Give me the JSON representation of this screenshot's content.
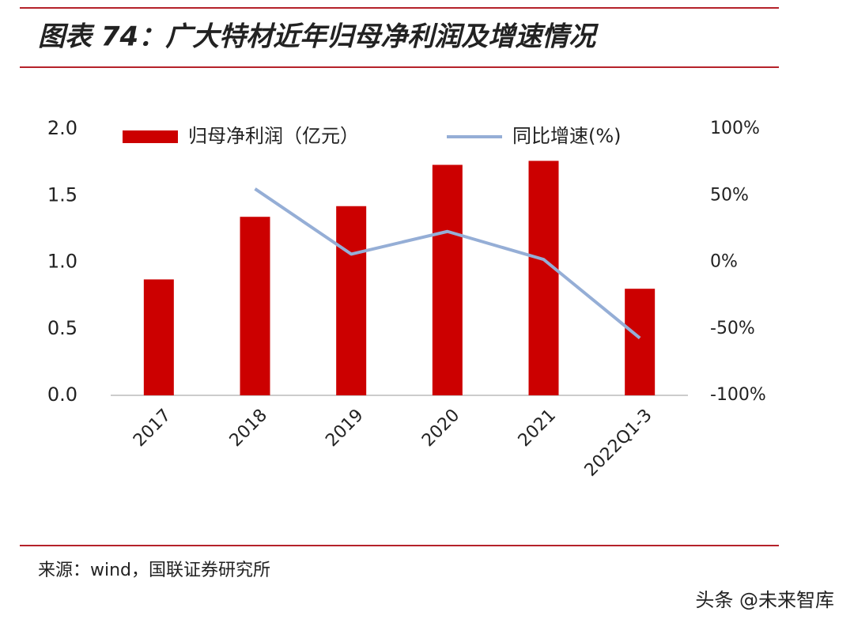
{
  "chart_data": {
    "type": "bar",
    "title": "图表 74：广大特材近年归母净利润及增速情况",
    "source": "来源：wind，国联证券研究所",
    "watermark": "头条 @未来智库",
    "categories": [
      "2017",
      "2018",
      "2019",
      "2020",
      "2021",
      "2022Q1-3"
    ],
    "series": [
      {
        "name": "归母净利润（亿元）",
        "type": "bar",
        "color": "#cc0000",
        "values": [
          0.87,
          1.34,
          1.42,
          1.73,
          1.76,
          0.8
        ]
      },
      {
        "name": "同比增速(%)",
        "type": "line",
        "axis": "y2",
        "color": "#95aed6",
        "values": [
          null,
          55,
          6,
          23,
          2,
          -57
        ]
      }
    ],
    "ylim": [
      0,
      2
    ],
    "yticks": [
      {
        "value": 0,
        "label": "0.0"
      },
      {
        "value": 0.5,
        "label": "0.5"
      },
      {
        "value": 1,
        "label": "1.0"
      },
      {
        "value": 1.5,
        "label": "1.5"
      },
      {
        "value": 2,
        "label": "2.0"
      }
    ],
    "y2lim": [
      -100,
      100
    ],
    "y2ticks": [
      {
        "value": -100,
        "label": "-100%"
      },
      {
        "value": -50,
        "label": "-50%"
      },
      {
        "value": 0,
        "label": "0%"
      },
      {
        "value": 50,
        "label": "50%"
      },
      {
        "value": 100,
        "label": "100%"
      }
    ],
    "grid": false
  }
}
